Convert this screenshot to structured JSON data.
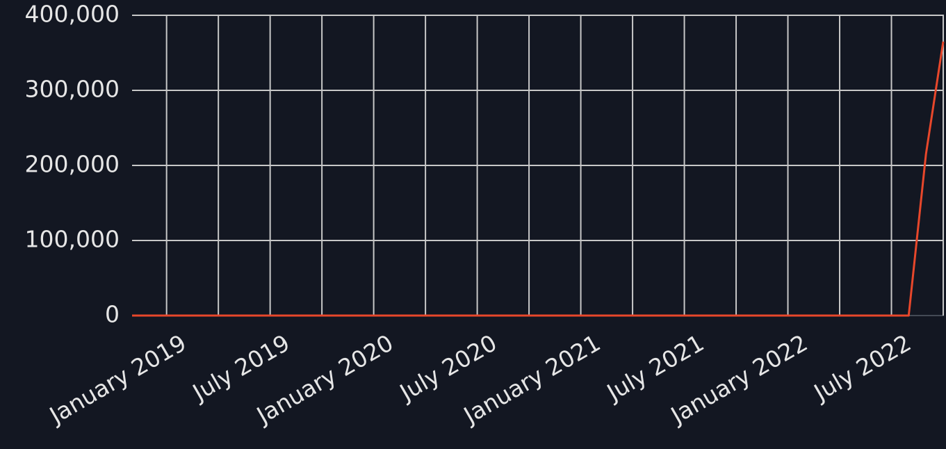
{
  "chart_data": {
    "type": "line",
    "x": [
      "2018-11",
      "2018-12",
      "2019-01",
      "2019-02",
      "2019-03",
      "2019-04",
      "2019-05",
      "2019-06",
      "2019-07",
      "2019-08",
      "2019-09",
      "2019-10",
      "2019-11",
      "2019-12",
      "2020-01",
      "2020-02",
      "2020-03",
      "2020-04",
      "2020-05",
      "2020-06",
      "2020-07",
      "2020-08",
      "2020-09",
      "2020-10",
      "2020-11",
      "2020-12",
      "2021-01",
      "2021-02",
      "2021-03",
      "2021-04",
      "2021-05",
      "2021-06",
      "2021-07",
      "2021-08",
      "2021-09",
      "2021-10",
      "2021-11",
      "2021-12",
      "2022-01",
      "2022-02",
      "2022-03",
      "2022-04",
      "2022-05",
      "2022-06",
      "2022-07",
      "2022-08",
      "2022-09",
      "2022-10"
    ],
    "series": [
      {
        "color": "#e8472b",
        "values": [
          0,
          0,
          0,
          0,
          0,
          0,
          0,
          0,
          0,
          0,
          0,
          0,
          0,
          0,
          0,
          0,
          0,
          0,
          0,
          0,
          0,
          0,
          0,
          0,
          0,
          0,
          0,
          0,
          0,
          0,
          0,
          0,
          0,
          0,
          0,
          0,
          0,
          0,
          0,
          0,
          0,
          0,
          0,
          0,
          0,
          0,
          215000,
          365000
        ]
      }
    ],
    "xlim": [
      "2018-11",
      "2022-10"
    ],
    "xticks": [
      {
        "value": "2019-01",
        "label": "January 2019"
      },
      {
        "value": "2019-04",
        "label": null
      },
      {
        "value": "2019-07",
        "label": "July 2019"
      },
      {
        "value": "2019-10",
        "label": null
      },
      {
        "value": "2020-01",
        "label": "January 2020"
      },
      {
        "value": "2020-04",
        "label": null
      },
      {
        "value": "2020-07",
        "label": "July 2020"
      },
      {
        "value": "2020-10",
        "label": null
      },
      {
        "value": "2021-01",
        "label": "January 2021"
      },
      {
        "value": "2021-04",
        "label": null
      },
      {
        "value": "2021-07",
        "label": "July 2021"
      },
      {
        "value": "2021-10",
        "label": null
      },
      {
        "value": "2022-01",
        "label": "January 2022"
      },
      {
        "value": "2022-04",
        "label": null
      },
      {
        "value": "2022-07",
        "label": "July 2022"
      },
      {
        "value": "2022-10",
        "label": null
      }
    ],
    "ylim": [
      0,
      400000
    ],
    "yticks": [
      0,
      {
        "value": 100000,
        "label": "100,000"
      },
      {
        "value": 200000,
        "label": "200,000"
      },
      {
        "value": 300000,
        "label": "300,000"
      },
      {
        "value": 400000,
        "label": "400,000"
      }
    ],
    "grid": true
  }
}
